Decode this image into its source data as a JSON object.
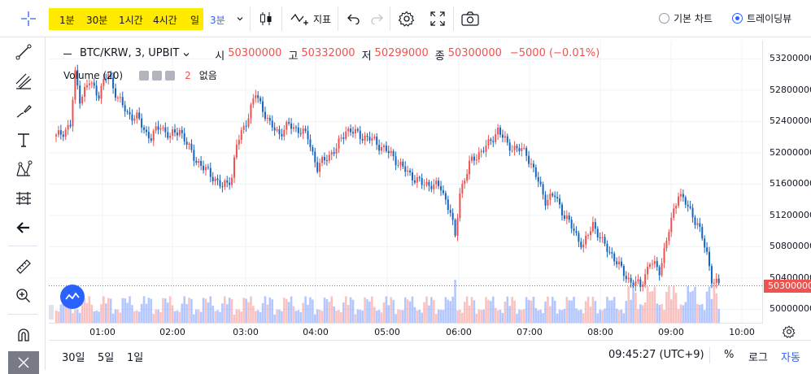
{
  "toolbar": {
    "timeframes": [
      "1분",
      "30분",
      "1시간",
      "4시간",
      "일"
    ],
    "selected_timeframe": "3분",
    "indicators_label": "지표",
    "chart_types": {
      "basic": "기본 차트",
      "tradingview": "트레이딩뷰",
      "selected": "트레이딩뷰"
    }
  },
  "legend": {
    "symbol": "BTC/KRW, 3, UPBIT",
    "open_label": "시",
    "open": "50300000",
    "high_label": "고",
    "high": "50332000",
    "low_label": "저",
    "low": "50299000",
    "close_label": "종",
    "close": "50300000",
    "change": "−5000 (−0.01%)",
    "volume_label": "Volume (20)",
    "volume_count": "2",
    "volume_none": "없음"
  },
  "price_axis": {
    "labels": [
      "53200000",
      "52800000",
      "52400000",
      "52000000",
      "51600000",
      "51200000",
      "50800000",
      "50400000",
      "50000000"
    ],
    "current_price": "50300000"
  },
  "time_axis": {
    "labels": [
      "01:00",
      "02:00",
      "03:00",
      "04:00",
      "05:00",
      "06:00",
      "07:00",
      "08:00",
      "09:00",
      "10:00"
    ]
  },
  "bottom": {
    "ranges": [
      "30일",
      "5일",
      "1일"
    ],
    "clock": "09:45:27 (UTC+9)",
    "percent": "%",
    "log": "로그",
    "auto": "자동"
  },
  "colors": {
    "up": "#ef5350",
    "down": "#1565c0",
    "accent": "#2962ff",
    "highlight": "#ffea00"
  },
  "chart_data": {
    "type": "candlestick",
    "x_start": "00:20",
    "interval_minutes": 3,
    "y_range": [
      49900000,
      53350000
    ],
    "close_path": [
      [
        0,
        52200000
      ],
      [
        4,
        52300000
      ],
      [
        6,
        52350000
      ],
      [
        8,
        53000000
      ],
      [
        10,
        52700000
      ],
      [
        14,
        52900000
      ],
      [
        18,
        52750000
      ],
      [
        20,
        52900000
      ],
      [
        22,
        53000000
      ],
      [
        24,
        52850000
      ],
      [
        26,
        52700000
      ],
      [
        30,
        52500000
      ],
      [
        34,
        52450000
      ],
      [
        38,
        52250000
      ],
      [
        40,
        52200000
      ],
      [
        44,
        52350000
      ],
      [
        48,
        52200000
      ],
      [
        52,
        52300000
      ],
      [
        56,
        52050000
      ],
      [
        58,
        51950000
      ],
      [
        62,
        51800000
      ],
      [
        66,
        51700000
      ],
      [
        70,
        51550000
      ],
      [
        74,
        51700000
      ],
      [
        76,
        52100000
      ],
      [
        80,
        52400000
      ],
      [
        84,
        52750000
      ],
      [
        88,
        52500000
      ],
      [
        90,
        52350000
      ],
      [
        94,
        52250000
      ],
      [
        98,
        52350000
      ],
      [
        102,
        52300000
      ],
      [
        106,
        52200000
      ],
      [
        110,
        51800000
      ],
      [
        114,
        51950000
      ],
      [
        118,
        52050000
      ],
      [
        122,
        52300000
      ],
      [
        126,
        52250000
      ],
      [
        130,
        52200000
      ],
      [
        134,
        52150000
      ],
      [
        138,
        52050000
      ],
      [
        142,
        51950000
      ],
      [
        146,
        51800000
      ],
      [
        150,
        51700000
      ],
      [
        154,
        51600000
      ],
      [
        158,
        51600000
      ],
      [
        162,
        51550000
      ],
      [
        166,
        51250000
      ],
      [
        168,
        50900000
      ],
      [
        170,
        51500000
      ],
      [
        174,
        51850000
      ],
      [
        178,
        52000000
      ],
      [
        182,
        52100000
      ],
      [
        186,
        52300000
      ],
      [
        190,
        52100000
      ],
      [
        194,
        52050000
      ],
      [
        198,
        52000000
      ],
      [
        202,
        51700000
      ],
      [
        206,
        51400000
      ],
      [
        210,
        51450000
      ],
      [
        214,
        51200000
      ],
      [
        218,
        51000000
      ],
      [
        222,
        50800000
      ],
      [
        226,
        51100000
      ],
      [
        230,
        50850000
      ],
      [
        234,
        50700000
      ],
      [
        238,
        50500000
      ],
      [
        242,
        50350000
      ],
      [
        246,
        50300000
      ],
      [
        250,
        50600000
      ],
      [
        254,
        50500000
      ],
      [
        258,
        51000000
      ],
      [
        262,
        51500000
      ],
      [
        266,
        51300000
      ],
      [
        270,
        51100000
      ],
      [
        274,
        50700000
      ],
      [
        276,
        50400000
      ],
      [
        279,
        50300000
      ]
    ],
    "volume_max": 50
  }
}
